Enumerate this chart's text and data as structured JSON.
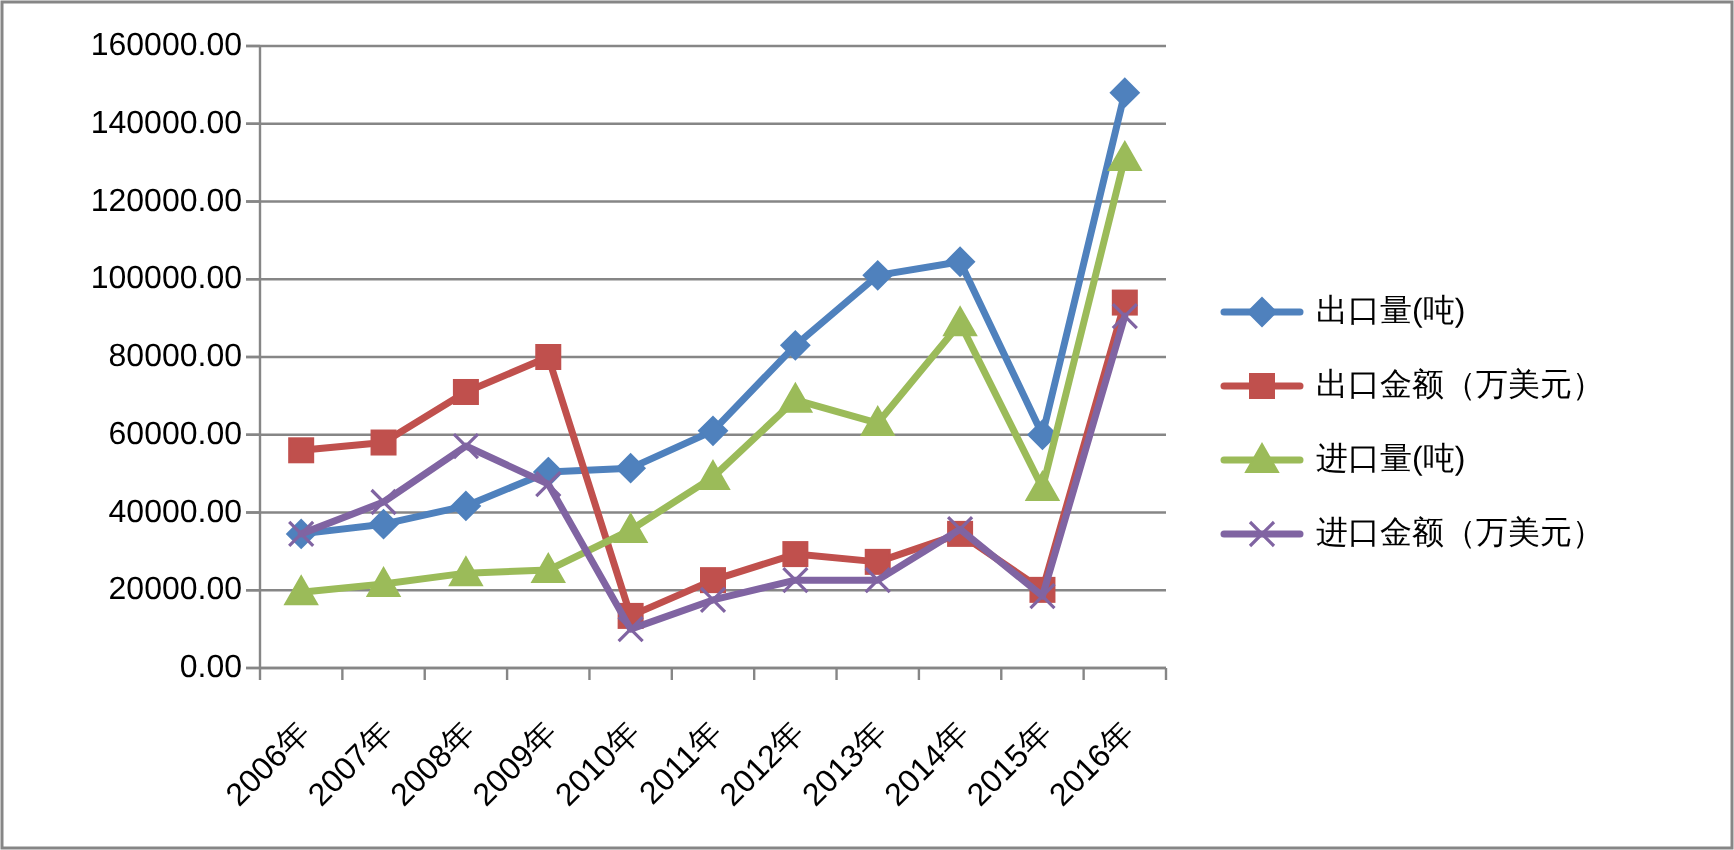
{
  "chart_data": {
    "type": "line",
    "categories": [
      "2006年",
      "2007年",
      "2008年",
      "2009年",
      "2010年",
      "2011年",
      "2012年",
      "2013年",
      "2014年",
      "2015年",
      "2016年"
    ],
    "series": [
      {
        "name": "出口量(吨)",
        "color": "#4f81bd",
        "marker": "diamond",
        "values": [
          34500,
          37000,
          41700,
          50400,
          51400,
          61000,
          83000,
          101000,
          104500,
          60000,
          148000
        ]
      },
      {
        "name": "出口金额（万美元）",
        "color": "#c0504d",
        "marker": "square",
        "values": [
          56000,
          58000,
          71000,
          80000,
          13400,
          22600,
          29300,
          27300,
          34500,
          20100,
          94000
        ]
      },
      {
        "name": "进口量(吨)",
        "color": "#9bbb59",
        "marker": "triangle",
        "values": [
          19500,
          21600,
          24400,
          25200,
          35500,
          49100,
          69000,
          63000,
          88700,
          46300,
          131200
        ]
      },
      {
        "name": "进口金额（万美元）",
        "color": "#8064a2",
        "marker": "cross",
        "values": [
          34500,
          42700,
          57100,
          47300,
          10000,
          17500,
          22600,
          22600,
          35700,
          18500,
          90500
        ]
      }
    ],
    "ylim": [
      0,
      160000
    ],
    "yticks": [
      {
        "value": 0,
        "label": "0.00"
      },
      {
        "value": 20000,
        "label": "20000.00"
      },
      {
        "value": 40000,
        "label": "40000.00"
      },
      {
        "value": 60000,
        "label": "60000.00"
      },
      {
        "value": 80000,
        "label": "80000.00"
      },
      {
        "value": 100000,
        "label": "100000.00"
      },
      {
        "value": 120000,
        "label": "120000.00"
      },
      {
        "value": 140000,
        "label": "140000.00"
      },
      {
        "value": 160000,
        "label": "160000.00"
      }
    ],
    "grid": "y",
    "legend": "right",
    "line_style": "solid"
  }
}
